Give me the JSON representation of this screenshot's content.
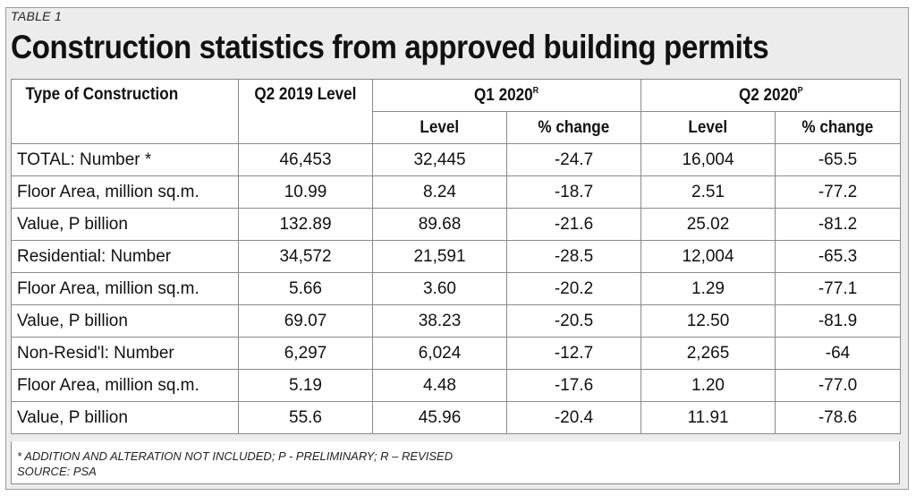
{
  "table_label": "TABLE 1",
  "title": "Construction statistics from approved building permits",
  "headers": {
    "type": "Type of Construction",
    "q2_2019": "Q2 2019 Level",
    "q1_2020": "Q1 2020",
    "q1_2020_mark": "R",
    "q2_2020": "Q2 2020",
    "q2_2020_mark": "P",
    "level": "Level",
    "pct_change": "% change"
  },
  "rows": [
    {
      "label": "TOTAL: Number *",
      "q2_2019": "46,453",
      "q1_level": "32,445",
      "q1_pct": "-24.7",
      "q2_level": "16,004",
      "q2_pct": "-65.5"
    },
    {
      "label": "Floor Area, million sq.m.",
      "q2_2019": "10.99",
      "q1_level": "8.24",
      "q1_pct": "-18.7",
      "q2_level": "2.51",
      "q2_pct": "-77.2"
    },
    {
      "label": "Value, P billion",
      "q2_2019": "132.89",
      "q1_level": "89.68",
      "q1_pct": "-21.6",
      "q2_level": "25.02",
      "q2_pct": "-81.2"
    },
    {
      "label": "Residential: Number",
      "q2_2019": "34,572",
      "q1_level": "21,591",
      "q1_pct": "-28.5",
      "q2_level": "12,004",
      "q2_pct": "-65.3"
    },
    {
      "label": "Floor Area, million sq.m.",
      "q2_2019": "5.66",
      "q1_level": "3.60",
      "q1_pct": "-20.2",
      "q2_level": "1.29",
      "q2_pct": "-77.1"
    },
    {
      "label": "Value, P billion",
      "q2_2019": "69.07",
      "q1_level": "38.23",
      "q1_pct": "-20.5",
      "q2_level": "12.50",
      "q2_pct": "-81.9"
    },
    {
      "label": "Non-Resid'l: Number",
      "q2_2019": "6,297",
      "q1_level": "6,024",
      "q1_pct": "-12.7",
      "q2_level": "2,265",
      "q2_pct": "-64"
    },
    {
      "label": "Floor Area, million sq.m.",
      "q2_2019": "5.19",
      "q1_level": "4.48",
      "q1_pct": "-17.6",
      "q2_level": "1.20",
      "q2_pct": "-77.0"
    },
    {
      "label": "Value, P billion",
      "q2_2019": "55.6",
      "q1_level": "45.96",
      "q1_pct": "-20.4",
      "q2_level": "11.91",
      "q2_pct": "-78.6"
    }
  ],
  "footnotes": {
    "note": "* ADDITION AND ALTERATION NOT INCLUDED; P - PRELIMINARY; R – REVISED",
    "source": "SOURCE: PSA"
  }
}
